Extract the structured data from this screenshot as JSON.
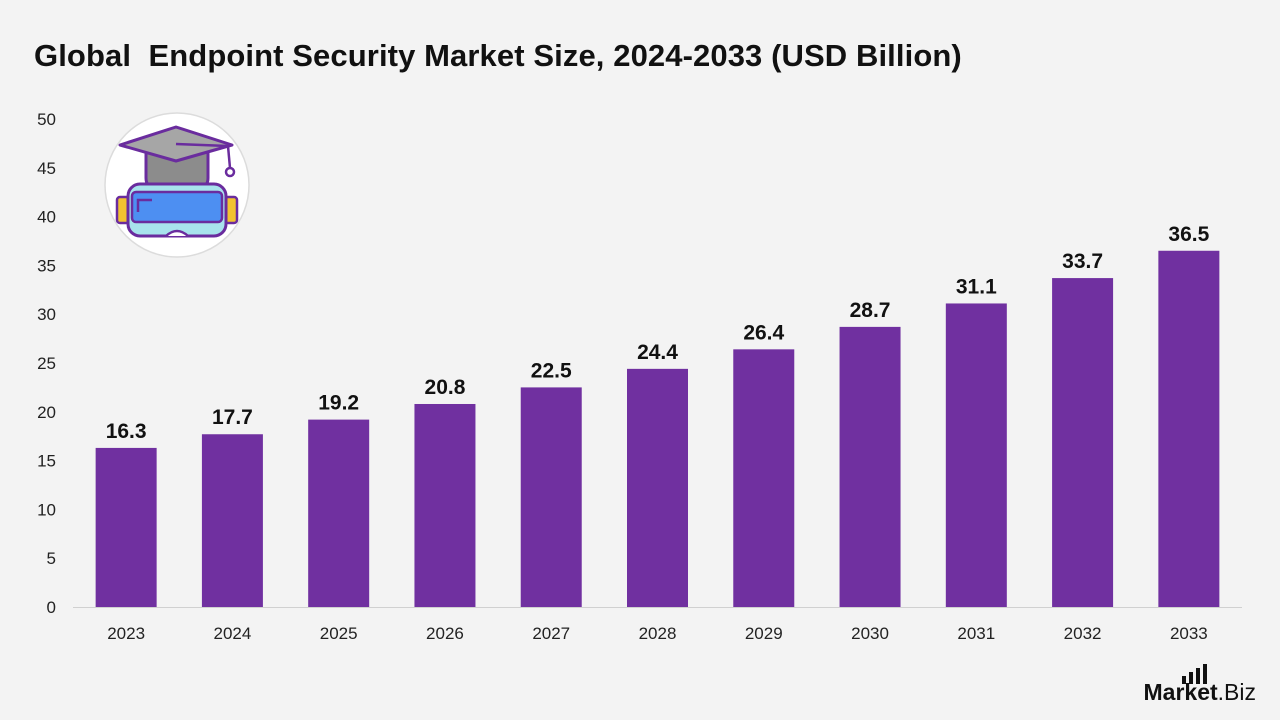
{
  "chart_data": {
    "type": "bar",
    "title": "Global  Endpoint Security Market Size, 2024-2033 (USD Billion)",
    "categories": [
      "2023",
      "2024",
      "2025",
      "2026",
      "2027",
      "2028",
      "2029",
      "2030",
      "2031",
      "2032",
      "2033"
    ],
    "values": [
      16.3,
      17.7,
      19.2,
      20.8,
      22.5,
      24.4,
      26.4,
      28.7,
      31.1,
      33.7,
      36.5
    ],
    "data_labels": [
      "16.3",
      "17.7",
      "19.2",
      "20.8",
      "22.5",
      "24.4",
      "26.4",
      "28.7",
      "31.1",
      "33.7",
      "36.5"
    ],
    "xlabel": "",
    "ylabel": "",
    "ylim": [
      0,
      50
    ],
    "yticks": [
      0,
      5,
      10,
      15,
      20,
      25,
      30,
      35,
      40,
      45,
      50
    ],
    "grid": false,
    "bar_color": "#7030a0"
  },
  "illustration": {
    "icon": "vr-headset-graduation-cap-icon"
  },
  "brand": {
    "name": "Market",
    "suffix": ".Biz"
  }
}
